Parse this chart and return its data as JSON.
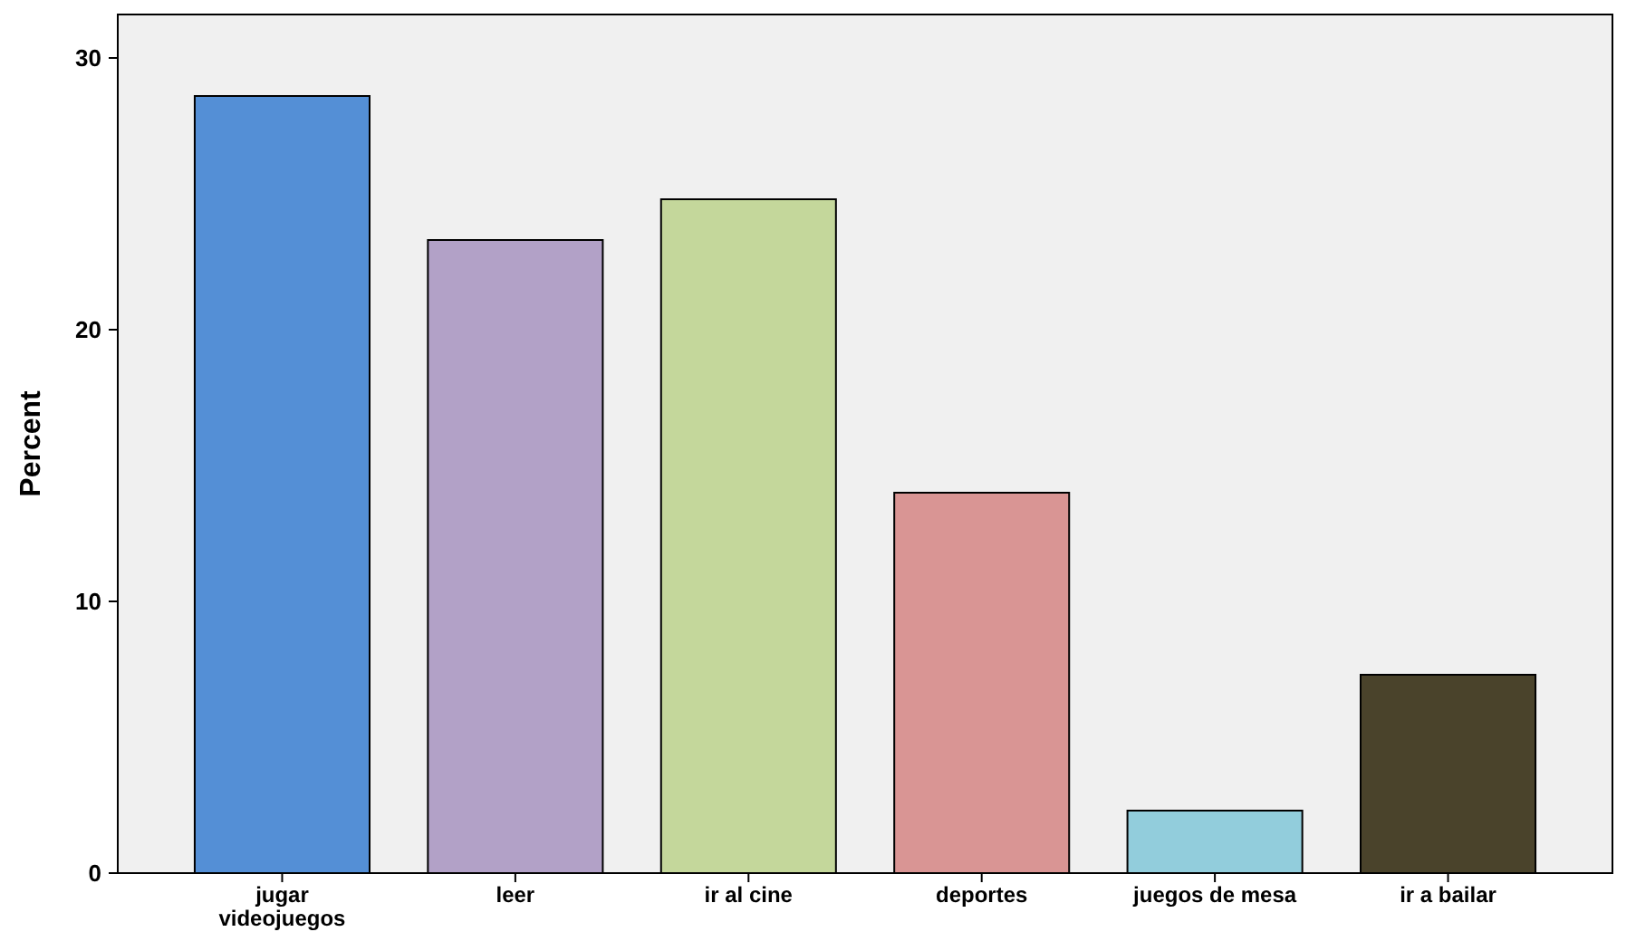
{
  "chart_data": {
    "type": "bar",
    "ylabel": "Percent",
    "categories": [
      "jugar videojuegos",
      "leer",
      "ir al cine",
      "deportes",
      "juegos de mesa",
      "ir a bailar"
    ],
    "values": [
      28.6,
      23.3,
      24.8,
      14.0,
      2.3,
      7.3
    ],
    "colors": [
      "#548fd6",
      "#b2a1c7",
      "#c4d79b",
      "#d99594",
      "#92cddc",
      "#4a432b"
    ],
    "ylim": [
      0,
      31.6
    ],
    "yticks": [
      0,
      10,
      20,
      30
    ],
    "grid": false
  }
}
